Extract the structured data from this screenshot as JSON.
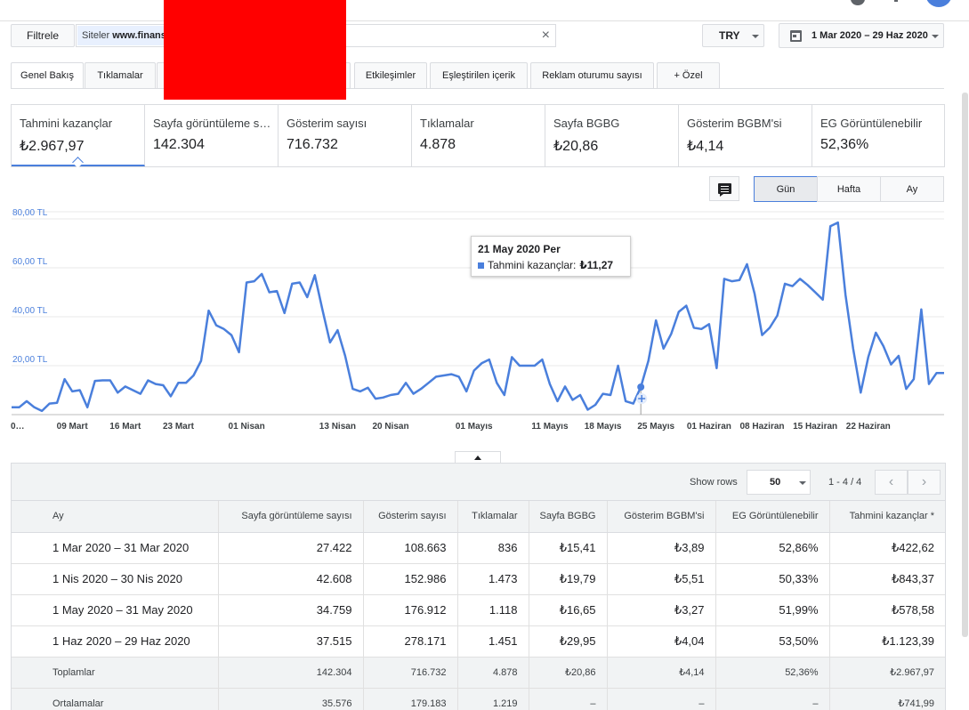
{
  "filter": {
    "button_label": "Filtrele",
    "chip_prefix": "Siteler",
    "chip_value": "www.finans",
    "close_glyph": "×"
  },
  "currency": "TRY",
  "date_range": "1 Mar 2020 – 29 Haz 2020",
  "tabs": [
    {
      "label": "Genel Bakış",
      "active": true
    },
    {
      "label": "Tıklamalar"
    },
    {
      "label": "Etkileşimler"
    },
    {
      "label": "Eşleştirilen içerik"
    },
    {
      "label": "Reklam oturumu sayısı"
    },
    {
      "label": "+ Özel"
    }
  ],
  "metrics": [
    {
      "label": "Tahmini kazançlar",
      "value": "₺2.967,97",
      "active": true
    },
    {
      "label": "Sayfa görüntüleme s…",
      "value": "142.304"
    },
    {
      "label": "Gösterim sayısı",
      "value": "716.732"
    },
    {
      "label": "Tıklamalar",
      "value": "4.878"
    },
    {
      "label": "Sayfa BGBG",
      "value": "₺20,86"
    },
    {
      "label": "Gösterim BGBM'si",
      "value": "₺4,14"
    },
    {
      "label": "EG Görüntülenebilir",
      "value": "52,36%"
    }
  ],
  "granularity": {
    "day": "Gün",
    "week": "Hafta",
    "month": "Ay",
    "selected": "day"
  },
  "icons": {
    "annotation": "chat-bubble-icon",
    "calendar": "calendar-icon",
    "dropdown": "chevron-down-icon",
    "prev": "chevron-left-icon",
    "next": "chevron-right-icon"
  },
  "colors": {
    "series": "#4a7fdc",
    "redaction": "#ff0000"
  },
  "tooltip": {
    "date": "21 May 2020 Per",
    "label": "Tahmini kazançlar:",
    "value": "₺11,27"
  },
  "chart_data": {
    "type": "line",
    "ylim": [
      0,
      80
    ],
    "yticks": [
      {
        "value": 20,
        "label": "20,00 TL"
      },
      {
        "value": 40,
        "label": "40,00 TL"
      },
      {
        "value": 60,
        "label": "60,00 TL"
      },
      {
        "value": 80,
        "label": "80,00 TL"
      }
    ],
    "xtick_labels": [
      "0…",
      "09 Mart",
      "16 Mart",
      "23 Mart",
      "01 Nisan",
      "13 Nisan",
      "20 Nisan",
      "01 Mayıs",
      "11 Mayıs",
      "18 Mayıs",
      "25 Mayıs",
      "01 Haziran",
      "08 Haziran",
      "15 Haziran",
      "22 Haziran"
    ],
    "xtick_positions": [
      0,
      8,
      15,
      22,
      31,
      43,
      50,
      61,
      71,
      78,
      85,
      92,
      99,
      106,
      113
    ],
    "series": [
      {
        "values": [
          3.0,
          3.0,
          5.5,
          3.0,
          1.5,
          4.5,
          4.8,
          14.5,
          9.5,
          10.0,
          3.0,
          13.8,
          14.0,
          14.0,
          9.0,
          11.5,
          10.0,
          8.5,
          14.0,
          12.5,
          12.0,
          7.5,
          13.0,
          13.0,
          16.0,
          22.0,
          42.5,
          36.5,
          35.0,
          32.5,
          25.5,
          54.0,
          54.5,
          57.5,
          50.0,
          50.5,
          41.5,
          53.5,
          54.0,
          48.0,
          57.0,
          43.0,
          29.5,
          34.5,
          24.0,
          10.5,
          9.5,
          11.0,
          6.5,
          7.0,
          8.0,
          8.5,
          13.0,
          8.5,
          10.5,
          13.0,
          15.5,
          16.0,
          16.5,
          15.5,
          9.5,
          18.0,
          21.0,
          22.5,
          13.0,
          8.0,
          23.5,
          20.0,
          20.0,
          20.0,
          22.5,
          12.5,
          5.5,
          11.5,
          6.0,
          8.0,
          2.0,
          4.0,
          8.5,
          8.0,
          20.0,
          5.5,
          4.5,
          11.27,
          22.0,
          38.5,
          27.0,
          33.0,
          42.0,
          44.5,
          35.5,
          35.0,
          37.0,
          19.0,
          55.5,
          54.5,
          55.0,
          61.5,
          49.5,
          32.5,
          35.5,
          40.5,
          53.5,
          52.5,
          55.5,
          53.0,
          50.0,
          47.0,
          77.0,
          78.5,
          49.0,
          27.0,
          9.0,
          23.5,
          33.5,
          28.0,
          20.5,
          24.0,
          10.5,
          14.5,
          43.0,
          12.5,
          17.0,
          17.0
        ]
      }
    ],
    "highlight_index": 83
  },
  "table": {
    "show_rows_label": "Show rows",
    "rows_per_page": "50",
    "pagination": "1 - 4 / 4",
    "headers": [
      "Ay",
      "Sayfa görüntüleme sayısı",
      "Gösterim sayısı",
      "Tıklamalar",
      "Sayfa BGBG",
      "Gösterim BGBM'si",
      "EG Görüntülenebilir",
      "Tahmini kazançlar *"
    ],
    "rows": [
      [
        "1 Mar 2020 – 31 Mar 2020",
        "27.422",
        "108.663",
        "836",
        "₺15,41",
        "₺3,89",
        "52,86%",
        "₺422,62"
      ],
      [
        "1 Nis 2020 – 30 Nis 2020",
        "42.608",
        "152.986",
        "1.473",
        "₺19,79",
        "₺5,51",
        "50,33%",
        "₺843,37"
      ],
      [
        "1 May 2020 – 31 May 2020",
        "34.759",
        "176.912",
        "1.118",
        "₺16,65",
        "₺3,27",
        "51,99%",
        "₺578,58"
      ],
      [
        "1 Haz 2020 – 29 Haz 2020",
        "37.515",
        "278.171",
        "1.451",
        "₺29,95",
        "₺4,04",
        "53,50%",
        "₺1.123,39"
      ]
    ],
    "totals": [
      "Toplamlar",
      "142.304",
      "716.732",
      "4.878",
      "₺20,86",
      "₺4,14",
      "52,36%",
      "₺2.967,97"
    ],
    "averages": [
      "Ortalamalar",
      "35.576",
      "179.183",
      "1.219",
      "–",
      "–",
      "–",
      "₺741,99"
    ]
  }
}
